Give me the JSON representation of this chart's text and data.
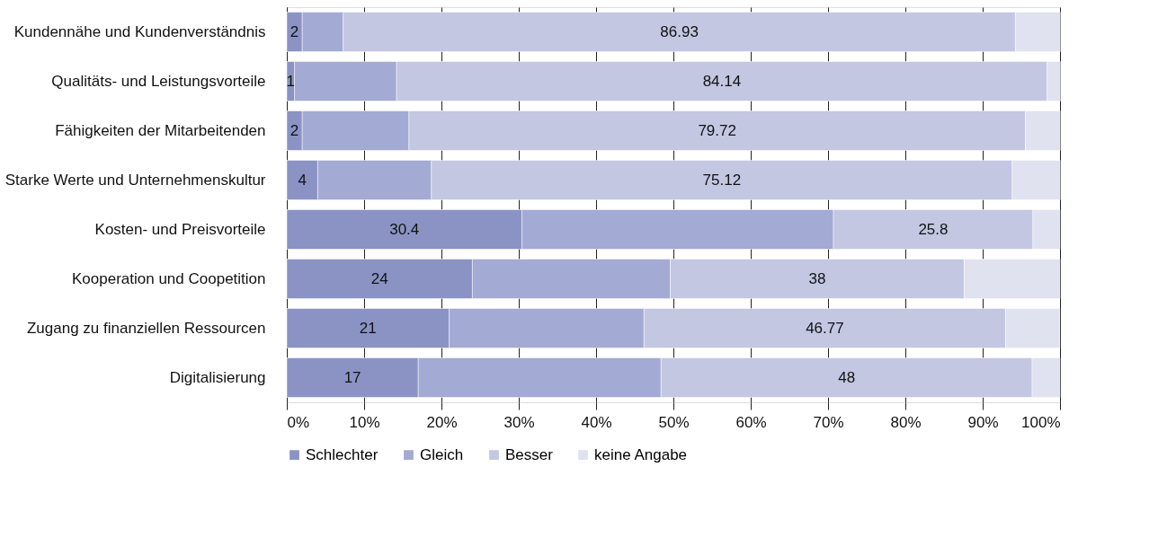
{
  "chart_data": {
    "type": "bar",
    "orientation": "horizontal",
    "stacked": true,
    "categories": [
      "Kundennähe und Kundenverständnis",
      "Qualitäts- und Leistungsvorteile",
      "Fähigkeiten der Mitarbeitenden",
      "Starke Werte und Unternehmenskultur",
      "Kosten- und Preisvorteile",
      "Kooperation und Coopetition",
      "Zugang zu finanziellen Ressourcen",
      "Digitalisierung"
    ],
    "series": [
      {
        "name": "Schlechter",
        "color": "#8a93c4",
        "values": [
          2,
          1,
          2,
          4,
          30.4,
          24,
          21,
          17
        ],
        "value_labels": [
          "2",
          "1",
          "2",
          "4",
          "30.4",
          "24",
          "21",
          "17"
        ]
      },
      {
        "name": "Gleich",
        "color": "#a3aad3",
        "values": [
          5.3,
          13.2,
          13.8,
          14.7,
          40.3,
          25.6,
          25.2,
          31.4
        ]
      },
      {
        "name": "Besser",
        "color": "#c3c7e2",
        "values": [
          86.93,
          84.14,
          79.72,
          75.12,
          25.8,
          38,
          46.77,
          48
        ],
        "value_labels": [
          "86.93",
          "84.14",
          "79.72",
          "75.12",
          "25.8",
          "38",
          "46.77",
          "48"
        ]
      },
      {
        "name": "keine Angabe",
        "color": "#e0e2f0",
        "values": [
          5.8,
          1.7,
          4.5,
          6.2,
          3.5,
          12.4,
          7,
          3.6
        ]
      }
    ],
    "xlim": [
      0,
      100
    ],
    "xticks": [
      {
        "value": 0,
        "label": "0%"
      },
      {
        "value": 10,
        "label": "10%"
      },
      {
        "value": 20,
        "label": "20%"
      },
      {
        "value": 30,
        "label": "30%"
      },
      {
        "value": 40,
        "label": "40%"
      },
      {
        "value": 50,
        "label": "50%"
      },
      {
        "value": 60,
        "label": "60%"
      },
      {
        "value": 70,
        "label": "70%"
      },
      {
        "value": 80,
        "label": "80%"
      },
      {
        "value": 90,
        "label": "90%"
      },
      {
        "value": 100,
        "label": "100%"
      }
    ],
    "grid": "x",
    "legend": "bottom"
  }
}
